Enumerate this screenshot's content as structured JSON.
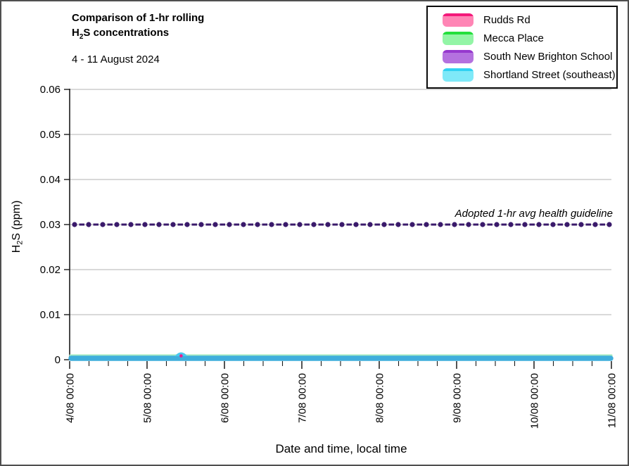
{
  "title": {
    "line1": "Comparison of 1-hr rolling",
    "line2_pre": "H",
    "line2_sub": "2",
    "line2_rest": "S concentrations",
    "subtitle": "4 - 11 August 2024"
  },
  "legend": {
    "items": [
      {
        "label": "Rudds Rd",
        "swatch_top": "#F4197A",
        "swatch_body": "#FF85B5"
      },
      {
        "label": "Mecca Place",
        "swatch_top": "#24DF3C",
        "swatch_body": "#93F5A6"
      },
      {
        "label": "South New Brighton School",
        "swatch_top": "#9638CE",
        "swatch_body": "#B471DF"
      },
      {
        "label": "Shortland Street (southeast)",
        "swatch_top": "#30D2F2",
        "swatch_body": "#7FE9F8"
      }
    ]
  },
  "chart_data": {
    "type": "line",
    "title": "Comparison of 1-hr rolling H2S concentrations",
    "subtitle": "4 - 11 August 2024",
    "xlabel": "Date and time, local time",
    "ylabel_parts": {
      "pre": "H",
      "sub": "2",
      "post": "S (ppm)"
    },
    "ylim": [
      0,
      0.06
    ],
    "ytick_values": [
      0.06,
      0.05,
      0.04,
      0.03,
      0.02,
      0.01,
      0
    ],
    "ytick_labels": [
      "0.06",
      "0.05",
      "0.04",
      "0.03",
      "0.02",
      "0.01",
      "0"
    ],
    "x_tick_labels": [
      "4/08 00:00",
      "5/08 00:00",
      "6/08 00:00",
      "7/08 00:00",
      "8/08 00:00",
      "9/08 00:00",
      "10/08 00:00",
      "11/08 00:00"
    ],
    "minor_x_divisions_per_day": 4,
    "grid": "horizontal gridlines at each 0.01 ppm",
    "legend_position": "top-right",
    "series": [
      {
        "name": "Rudds Rd",
        "color": "#EC1C8D",
        "approx_constant_value": 0.0,
        "note": "flat at ~0.000 ppm all week; single point ~0.001 ppm visible at 5/08 ~10:00 under the cyan blip"
      },
      {
        "name": "Mecca Place",
        "color": "#8FE8AD",
        "approx_constant_value": 0.0,
        "note": "flat at ~0.000 ppm all week; thin green edge visible above the cyan line"
      },
      {
        "name": "South New Brighton School",
        "color": "#A85CDF",
        "approx_constant_value": 0.0,
        "note": "flat at ~0.000 ppm all week; hidden beneath the cyan line"
      },
      {
        "name": "Shortland Street (southeast)",
        "color": "#3FAEDC",
        "approx_constant_value": 0.0,
        "blip": {
          "date": "5/08",
          "approx_time": "10:00",
          "value": 0.001
        },
        "note": "flat at ~0.000 ppm with one small blip ~0.001 ppm on 5/08"
      }
    ],
    "guideline": {
      "label": "Adopted 1-hr avg health guideline",
      "value": 0.03,
      "style": "dash-dot"
    }
  },
  "colors": {
    "gridline": "#C2C2C2",
    "axis": "#1a1a1a",
    "tick_text": "#000000",
    "guideline": "#3A1A6B",
    "zero_line": "#3FAEDC",
    "zero_line_green_edge": "#A9ECC3",
    "blip_fill": "#4AC9EF",
    "blip_dot": "#EC1C8D",
    "frame_border": "#4f4f4f",
    "legend_border": "#0a0a0a"
  }
}
